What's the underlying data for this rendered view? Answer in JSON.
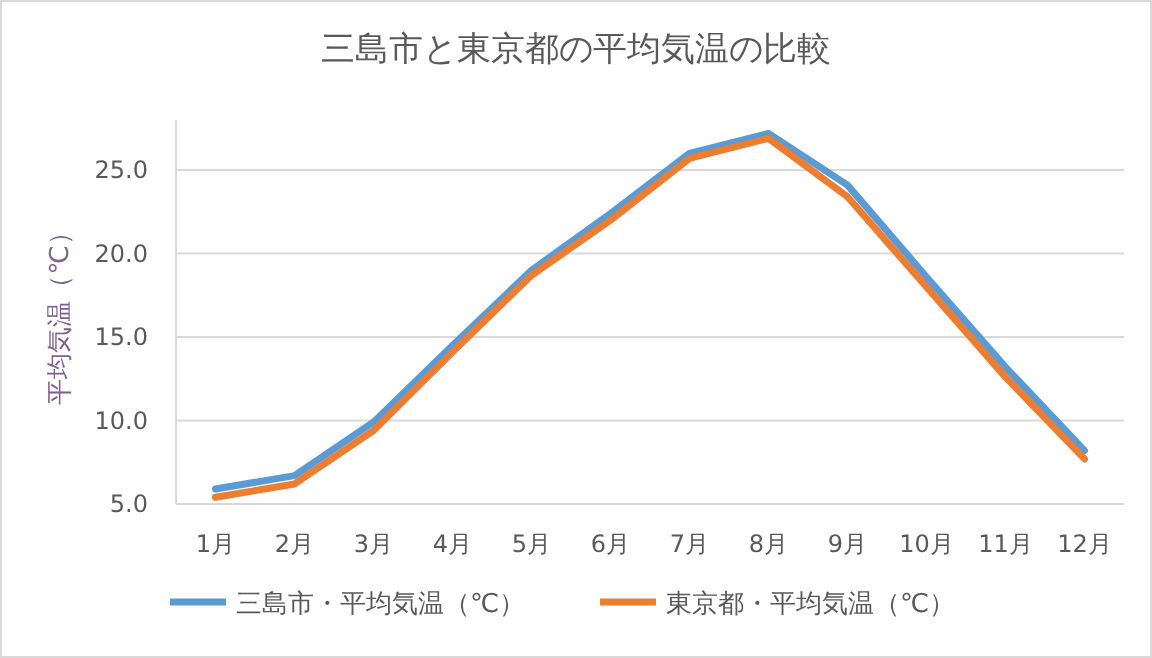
{
  "chart_data": {
    "type": "line",
    "title": "三島市と東京都の平均気温の比較",
    "ylabel": "平均気温（℃）",
    "categories": [
      "1月",
      "2月",
      "3月",
      "4月",
      "5月",
      "6月",
      "7月",
      "8月",
      "9月",
      "10月",
      "11月",
      "12月"
    ],
    "series": [
      {
        "name": "三島市・平均気温（℃）",
        "color": "#5b9bd5",
        "values": [
          5.9,
          6.7,
          9.9,
          14.5,
          19.0,
          22.4,
          26.0,
          27.2,
          24.1,
          18.6,
          13.2,
          8.2
        ]
      },
      {
        "name": "東京都・平均気温（℃）",
        "color": "#ed7d31",
        "values": [
          5.4,
          6.2,
          9.4,
          14.1,
          18.7,
          22.0,
          25.7,
          26.9,
          23.4,
          18.0,
          12.6,
          7.7
        ]
      }
    ],
    "ylim": [
      5,
      28
    ],
    "yticks": [
      {
        "value": 5,
        "label": "5.0"
      },
      {
        "value": 10,
        "label": "10.0"
      },
      {
        "value": 15,
        "label": "15.0"
      },
      {
        "value": 20,
        "label": "20.0"
      },
      {
        "value": 25,
        "label": "25.0"
      }
    ],
    "grid": "y",
    "legend": "bottom",
    "marker": "none",
    "line_style": "solid"
  }
}
